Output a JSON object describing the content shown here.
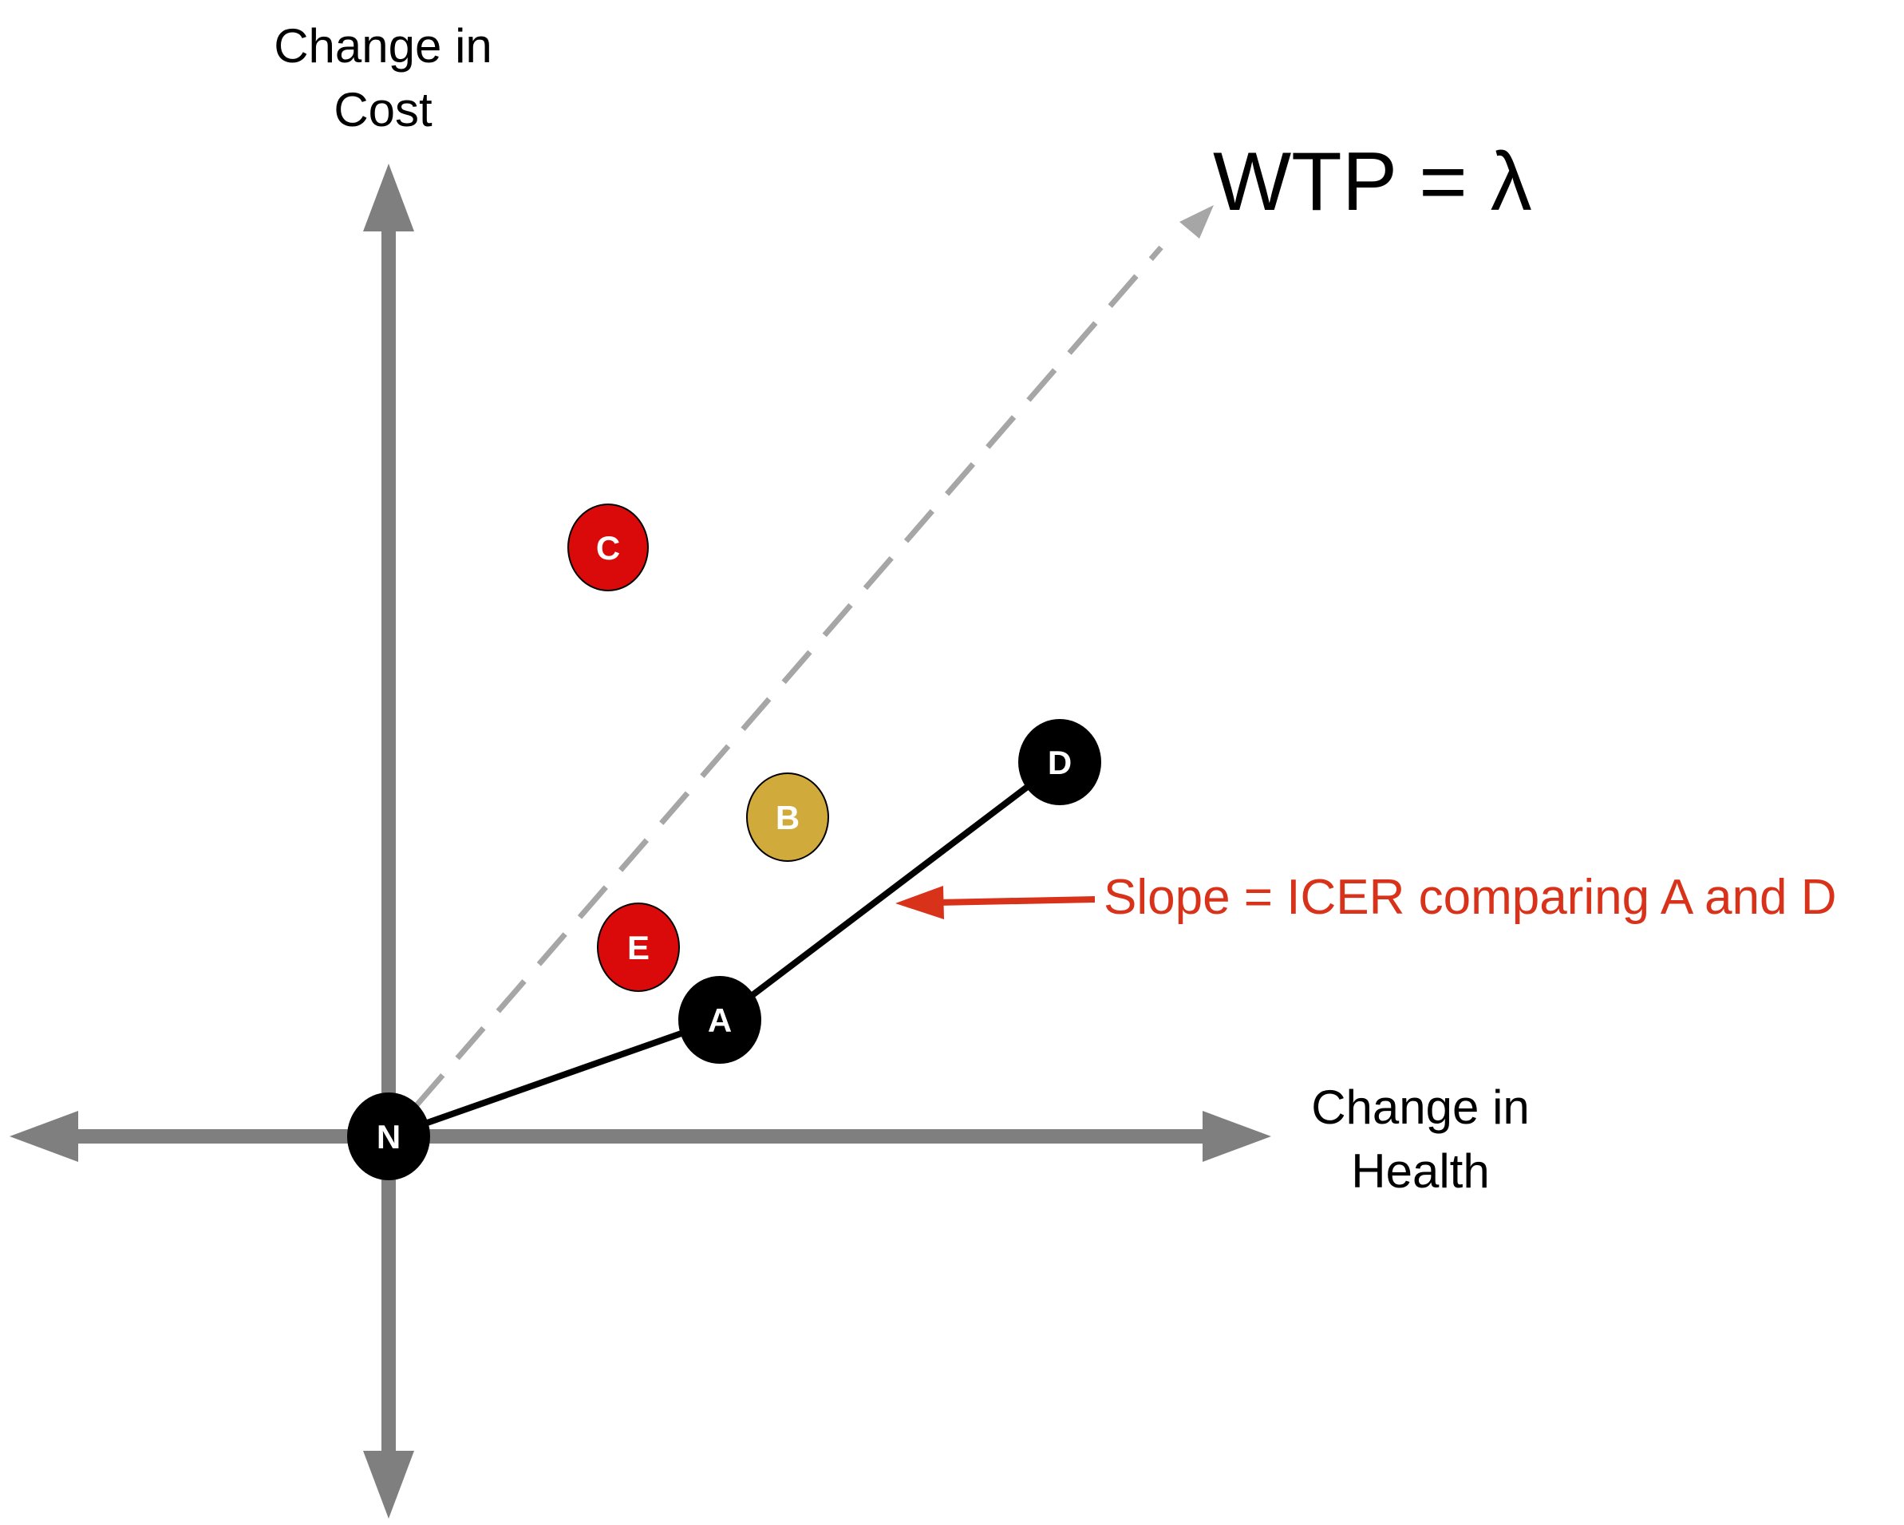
{
  "labels": {
    "y_axis": [
      "Change in",
      "Cost"
    ],
    "x_axis": [
      "Change in",
      "Health"
    ],
    "wtp": "WTP = λ",
    "slope_annotation": "Slope = ICER comparing A and D"
  },
  "nodes": [
    {
      "id": "N",
      "label": "N",
      "fill": "#000000",
      "text_color": "#ffffff"
    },
    {
      "id": "A",
      "label": "A",
      "fill": "#000000",
      "text_color": "#ffffff"
    },
    {
      "id": "D",
      "label": "D",
      "fill": "#000000",
      "text_color": "#ffffff"
    },
    {
      "id": "B",
      "label": "B",
      "fill": "#d0aa3a",
      "text_color": "#ffffff"
    },
    {
      "id": "C",
      "label": "C",
      "fill": "#db0a0a",
      "text_color": "#ffffff"
    },
    {
      "id": "E",
      "label": "E",
      "fill": "#db0a0a",
      "text_color": "#ffffff"
    }
  ],
  "colors": {
    "axis": "#7f7f7f",
    "wtp_line": "#a6a6a6",
    "frontier": "#000000",
    "annotation": "#d9321b"
  }
}
